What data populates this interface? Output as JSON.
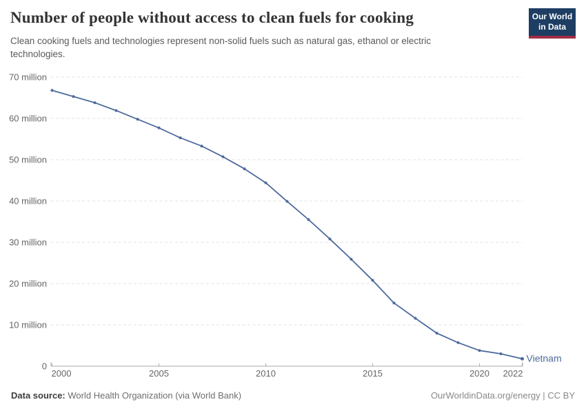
{
  "header": {
    "title": "Number of people without access to clean fuels for cooking",
    "subtitle": "Clean cooking fuels and technologies represent non-solid fuels such as natural gas, ethanol or electric technologies.",
    "logo": {
      "line1": "Our World",
      "line2": "in Data",
      "bg_color": "#1d3d63",
      "stripe_color": "#a32c44"
    }
  },
  "chart_data": {
    "type": "line",
    "title": "Number of people without access to clean fuels for cooking",
    "x": [
      2000,
      2001,
      2002,
      2003,
      2004,
      2005,
      2006,
      2007,
      2008,
      2009,
      2010,
      2011,
      2012,
      2013,
      2014,
      2015,
      2016,
      2017,
      2018,
      2019,
      2020,
      2021,
      2022
    ],
    "series": [
      {
        "name": "Vietnam",
        "color": "#4c6a9c",
        "values": [
          66.8,
          65.3,
          63.8,
          61.9,
          59.8,
          57.7,
          55.3,
          53.3,
          50.7,
          47.8,
          44.4,
          39.9,
          35.5,
          30.8,
          25.9,
          20.8,
          15.3,
          11.6,
          8.0,
          5.7,
          3.8,
          3.0,
          1.8
        ]
      }
    ],
    "values_unit": "million people",
    "ylim_millions": [
      0,
      70
    ],
    "yticks": [
      {
        "millions": 0,
        "label": "0"
      },
      {
        "millions": 10,
        "label": "10 million"
      },
      {
        "millions": 20,
        "label": "20 million"
      },
      {
        "millions": 30,
        "label": "30 million"
      },
      {
        "millions": 40,
        "label": "40 million"
      },
      {
        "millions": 50,
        "label": "50 million"
      },
      {
        "millions": 60,
        "label": "60 million"
      },
      {
        "millions": 70,
        "label": "70 million"
      }
    ],
    "xticks": [
      2000,
      2005,
      2010,
      2015,
      2020,
      2022
    ],
    "grid": "horizontal-dashed",
    "legend_position": "end-of-line",
    "end_label": "Vietnam",
    "colors": {
      "grid": "#e0e0e0",
      "axis": "#a9a9a9",
      "tick_text": "#666666"
    }
  },
  "footer": {
    "source_label": "Data source:",
    "source_value": "World Health Organization (via World Bank)",
    "credit": "OurWorldinData.org/energy | CC BY"
  }
}
